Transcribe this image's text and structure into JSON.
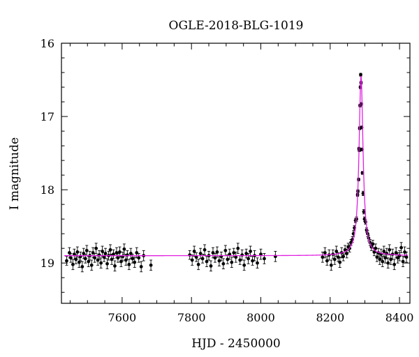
{
  "chart_data": {
    "type": "scatter",
    "title": "OGLE-2018-BLG-1019",
    "xlabel": "HJD - 2450000",
    "ylabel": "I magnitude",
    "xlim": [
      7425,
      8430
    ],
    "ylim": [
      19.55,
      16.0
    ],
    "y_inverted": true,
    "grid": false,
    "xticks": [
      7600,
      7800,
      8000,
      8200,
      8400
    ],
    "xtick_labels": [
      "7600",
      "7800",
      "8000",
      "8200",
      "8400"
    ],
    "yticks": [
      16,
      17,
      18,
      19
    ],
    "ytick_labels": [
      "16",
      "17",
      "18",
      "19"
    ],
    "colors": {
      "data": "#000000",
      "model": "#e020e0"
    },
    "series": [
      {
        "kind": "points_with_errorbars",
        "points": [
          [
            7440,
            18.97,
            0.06
          ],
          [
            7448,
            18.86,
            0.07
          ],
          [
            7452,
            18.93,
            0.06
          ],
          [
            7458,
            19.02,
            0.07
          ],
          [
            7462,
            18.88,
            0.07
          ],
          [
            7467,
            18.95,
            0.06
          ],
          [
            7471,
            18.85,
            0.07
          ],
          [
            7476,
            18.99,
            0.07
          ],
          [
            7480,
            18.91,
            0.06
          ],
          [
            7485,
            19.05,
            0.07
          ],
          [
            7489,
            18.87,
            0.07
          ],
          [
            7494,
            18.94,
            0.06
          ],
          [
            7498,
            18.83,
            0.07
          ],
          [
            7503,
            18.98,
            0.07
          ],
          [
            7507,
            18.9,
            0.06
          ],
          [
            7512,
            19.03,
            0.07
          ],
          [
            7516,
            18.86,
            0.07
          ],
          [
            7521,
            18.93,
            0.06
          ],
          [
            7525,
            18.8,
            0.07
          ],
          [
            7530,
            18.96,
            0.07
          ],
          [
            7534,
            18.89,
            0.06
          ],
          [
            7539,
            19.0,
            0.07
          ],
          [
            7543,
            18.84,
            0.07
          ],
          [
            7548,
            18.92,
            0.06
          ],
          [
            7552,
            18.87,
            0.07
          ],
          [
            7557,
            19.01,
            0.07
          ],
          [
            7561,
            18.9,
            0.06
          ],
          [
            7566,
            18.82,
            0.07
          ],
          [
            7570,
            18.95,
            0.07
          ],
          [
            7575,
            18.88,
            0.06
          ],
          [
            7579,
            19.04,
            0.07
          ],
          [
            7584,
            18.86,
            0.07
          ],
          [
            7588,
            18.93,
            0.06
          ],
          [
            7593,
            18.85,
            0.07
          ],
          [
            7597,
            18.98,
            0.07
          ],
          [
            7602,
            18.91,
            0.06
          ],
          [
            7606,
            18.81,
            0.07
          ],
          [
            7611,
            18.96,
            0.07
          ],
          [
            7615,
            18.89,
            0.06
          ],
          [
            7620,
            19.02,
            0.07
          ],
          [
            7625,
            18.87,
            0.07
          ],
          [
            7630,
            18.94,
            0.06
          ],
          [
            7636,
            18.99,
            0.07
          ],
          [
            7642,
            18.86,
            0.07
          ],
          [
            7648,
            18.93,
            0.06
          ],
          [
            7655,
            19.05,
            0.07
          ],
          [
            7662,
            18.9,
            0.07
          ],
          [
            7683,
            19.03,
            0.07
          ],
          [
            7795,
            18.89,
            0.06
          ],
          [
            7802,
            18.96,
            0.07
          ],
          [
            7808,
            18.84,
            0.07
          ],
          [
            7814,
            18.92,
            0.06
          ],
          [
            7820,
            19.02,
            0.07
          ],
          [
            7826,
            18.87,
            0.07
          ],
          [
            7832,
            18.94,
            0.06
          ],
          [
            7838,
            18.82,
            0.07
          ],
          [
            7844,
            18.98,
            0.07
          ],
          [
            7850,
            18.9,
            0.06
          ],
          [
            7856,
            19.04,
            0.07
          ],
          [
            7862,
            18.86,
            0.07
          ],
          [
            7868,
            18.93,
            0.06
          ],
          [
            7874,
            18.85,
            0.07
          ],
          [
            7880,
            18.97,
            0.07
          ],
          [
            7886,
            18.91,
            0.06
          ],
          [
            7892,
            19.01,
            0.07
          ],
          [
            7898,
            18.83,
            0.07
          ],
          [
            7904,
            18.95,
            0.06
          ],
          [
            7910,
            18.88,
            0.07
          ],
          [
            7916,
            18.99,
            0.07
          ],
          [
            7922,
            18.86,
            0.06
          ],
          [
            7928,
            18.92,
            0.07
          ],
          [
            7934,
            18.8,
            0.07
          ],
          [
            7940,
            18.96,
            0.06
          ],
          [
            7946,
            18.89,
            0.07
          ],
          [
            7952,
            19.03,
            0.07
          ],
          [
            7958,
            18.87,
            0.06
          ],
          [
            7964,
            18.94,
            0.07
          ],
          [
            7970,
            18.84,
            0.07
          ],
          [
            7976,
            18.97,
            0.06
          ],
          [
            7982,
            18.9,
            0.07
          ],
          [
            7990,
            19.0,
            0.07
          ],
          [
            8000,
            18.88,
            0.07
          ],
          [
            8010,
            18.94,
            0.07
          ],
          [
            8042,
            18.91,
            0.07
          ],
          [
            8178,
            18.92,
            0.07
          ],
          [
            8185,
            18.86,
            0.07
          ],
          [
            8191,
            18.97,
            0.06
          ],
          [
            8197,
            18.89,
            0.07
          ],
          [
            8203,
            19.03,
            0.07
          ],
          [
            8208,
            18.88,
            0.06
          ],
          [
            8213,
            18.95,
            0.07
          ],
          [
            8218,
            18.84,
            0.07
          ],
          [
            8223,
            18.92,
            0.06
          ],
          [
            8228,
            18.99,
            0.07
          ],
          [
            8233,
            18.86,
            0.07
          ],
          [
            8238,
            18.91,
            0.06
          ],
          [
            8243,
            18.82,
            0.06
          ],
          [
            8248,
            18.87,
            0.06
          ],
          [
            8252,
            18.78,
            0.05
          ],
          [
            8256,
            18.8,
            0.05
          ],
          [
            8260,
            18.72,
            0.04
          ],
          [
            8264,
            18.68,
            0.04
          ],
          [
            8267,
            18.6,
            0.04
          ],
          [
            8270,
            18.52,
            0.03
          ],
          [
            8273,
            18.42,
            0.03
          ],
          [
            8276,
            18.4,
            0.03
          ],
          [
            8279,
            18.07,
            0.02
          ],
          [
            8280,
            18.02,
            0.02
          ],
          [
            8282,
            17.86,
            0.02
          ],
          [
            8283,
            17.44,
            0.02
          ],
          [
            8284,
            17.46,
            0.02
          ],
          [
            8285,
            17.16,
            0.02
          ],
          [
            8286,
            16.85,
            0.02
          ],
          [
            8287,
            16.6,
            0.02
          ],
          [
            8288,
            16.43,
            0.02
          ],
          [
            8289,
            16.54,
            0.02
          ],
          [
            8290,
            16.83,
            0.02
          ],
          [
            8291,
            17.15,
            0.02
          ],
          [
            8292,
            17.45,
            0.02
          ],
          [
            8293,
            17.77,
            0.02
          ],
          [
            8295,
            18.05,
            0.03
          ],
          [
            8297,
            18.3,
            0.03
          ],
          [
            8299,
            18.4,
            0.03
          ],
          [
            8302,
            18.44,
            0.03
          ],
          [
            8305,
            18.55,
            0.03
          ],
          [
            8308,
            18.6,
            0.04
          ],
          [
            8311,
            18.66,
            0.04
          ],
          [
            8315,
            18.72,
            0.04
          ],
          [
            8319,
            18.78,
            0.05
          ],
          [
            8323,
            18.74,
            0.05
          ],
          [
            8327,
            18.85,
            0.05
          ],
          [
            8331,
            18.8,
            0.06
          ],
          [
            8335,
            18.92,
            0.06
          ],
          [
            8339,
            18.86,
            0.06
          ],
          [
            8343,
            18.95,
            0.07
          ],
          [
            8347,
            18.88,
            0.07
          ],
          [
            8351,
            18.98,
            0.07
          ],
          [
            8355,
            18.84,
            0.07
          ],
          [
            8359,
            18.93,
            0.07
          ],
          [
            8363,
            18.87,
            0.07
          ],
          [
            8367,
            19.0,
            0.07
          ],
          [
            8371,
            18.82,
            0.07
          ],
          [
            8375,
            18.95,
            0.07
          ],
          [
            8380,
            18.88,
            0.07
          ],
          [
            8385,
            19.02,
            0.07
          ],
          [
            8390,
            18.86,
            0.07
          ],
          [
            8395,
            18.93,
            0.07
          ],
          [
            8400,
            18.9,
            0.07
          ],
          [
            8405,
            18.79,
            0.07
          ],
          [
            8410,
            18.98,
            0.07
          ],
          [
            8415,
            18.85,
            0.07
          ],
          [
            8420,
            18.92,
            0.07
          ]
        ]
      },
      {
        "kind": "model_curve",
        "baseline": 18.9,
        "t0": 8289,
        "peak": 16.45,
        "width": 7
      }
    ]
  }
}
